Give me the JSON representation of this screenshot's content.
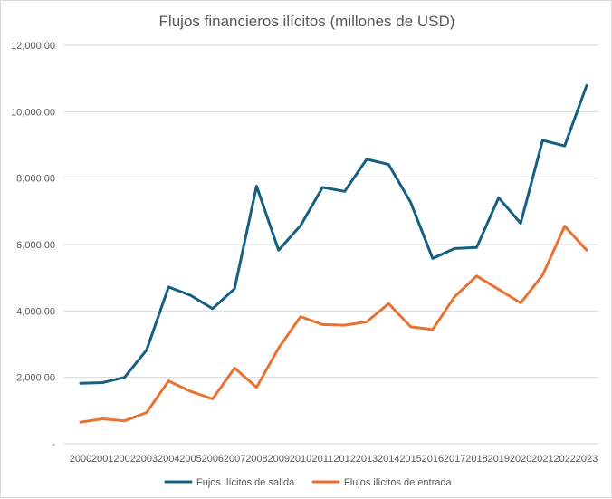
{
  "chart_data": {
    "type": "line",
    "title": "Flujos financieros ilícitos (millones de USD)",
    "xlabel": "",
    "ylabel": "",
    "categories": [
      "2000",
      "2001",
      "2002",
      "2003",
      "2004",
      "2005",
      "2006",
      "2007",
      "2008",
      "2009",
      "2010",
      "2011",
      "2012",
      "2013",
      "2014",
      "2015",
      "2016",
      "2017",
      "2018",
      "2019",
      "2020",
      "2021",
      "2022",
      "2023"
    ],
    "y_ticks": [
      "-",
      "2,000.00",
      "4,000.00",
      "6,000.00",
      "8,000.00",
      "10,000.00",
      "12,000.00"
    ],
    "ylim": [
      0,
      12000
    ],
    "grid": true,
    "legend_position": "bottom",
    "series": [
      {
        "name": "Fujos Ilícitos de salida",
        "color": "#156082",
        "values": [
          1820,
          1840,
          2000,
          2820,
          4720,
          4470,
          4070,
          4670,
          7760,
          5830,
          6570,
          7720,
          7600,
          8570,
          8410,
          7270,
          5580,
          5880,
          5910,
          7410,
          6640,
          9140,
          8970,
          10790
        ]
      },
      {
        "name": "Flujos ilícitos de entrada",
        "color": "#e97132",
        "values": [
          650,
          750,
          690,
          940,
          1890,
          1580,
          1350,
          2280,
          1700,
          2880,
          3830,
          3590,
          3570,
          3670,
          4220,
          3520,
          3440,
          4430,
          5050,
          4650,
          4240,
          5080,
          6550,
          5830
        ]
      }
    ]
  }
}
